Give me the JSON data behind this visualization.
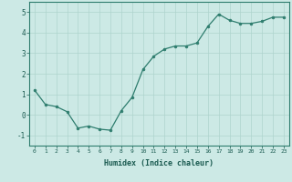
{
  "x": [
    0,
    1,
    2,
    3,
    4,
    5,
    6,
    7,
    8,
    9,
    10,
    11,
    12,
    13,
    14,
    15,
    16,
    17,
    18,
    19,
    20,
    21,
    22,
    23
  ],
  "y": [
    1.2,
    0.5,
    0.4,
    0.15,
    -0.65,
    -0.55,
    -0.7,
    -0.75,
    0.2,
    0.85,
    2.2,
    2.85,
    3.2,
    3.35,
    3.35,
    3.5,
    4.3,
    4.9,
    4.6,
    4.45,
    4.45,
    4.55,
    4.75,
    4.75
  ],
  "line_color": "#2e7d6e",
  "marker": "o",
  "marker_size": 2.0,
  "bg_color": "#cce9e5",
  "grid_color": "#aed4ce",
  "xlabel": "Humidex (Indice chaleur)",
  "xlim": [
    -0.5,
    23.5
  ],
  "ylim": [
    -1.5,
    5.5
  ],
  "yticks": [
    -1,
    0,
    1,
    2,
    3,
    4,
    5
  ],
  "xticks": [
    0,
    1,
    2,
    3,
    4,
    5,
    6,
    7,
    8,
    9,
    10,
    11,
    12,
    13,
    14,
    15,
    16,
    17,
    18,
    19,
    20,
    21,
    22,
    23
  ]
}
